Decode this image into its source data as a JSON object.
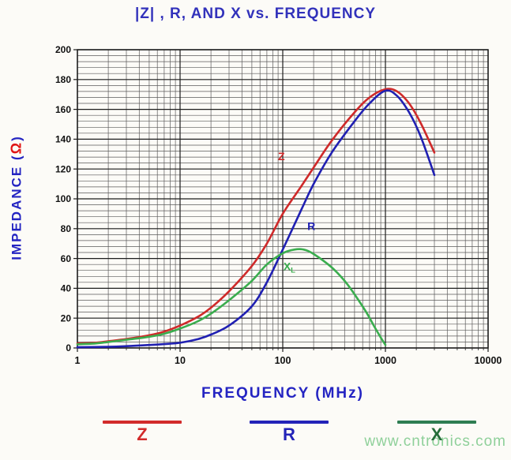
{
  "title": "|Z| , R, AND X vs. FREQUENCY",
  "watermark": "www.cntronics.com",
  "axis": {
    "ylabel_prefix": "IMPEDANCE (",
    "omega": "Ω",
    "ylabel_suffix": ")",
    "xlabel": "FREQUENCY (MHz)"
  },
  "colors": {
    "background": "#fcfbf7",
    "title": "#3232bb",
    "axis_label": "#2424c2",
    "omega": "#e01414",
    "tick_text": "#111111",
    "grid_minor": "#5a5a5a",
    "grid_major": "#1d1d1d",
    "plot_border": "#1d1d1d",
    "watermark": "#8fd09a"
  },
  "legend": {
    "items": [
      {
        "label": "Z",
        "line_color": "#d22b2b",
        "text_color": "#d22b2b"
      },
      {
        "label": "R",
        "line_color": "#2323b8",
        "text_color": "#2323b8"
      },
      {
        "label": "X",
        "line_color": "#2e7d52",
        "text_color": "#256e3a"
      }
    ]
  },
  "chart_data": {
    "type": "line",
    "title": "|Z| , R, AND X vs. FREQUENCY",
    "xlabel": "FREQUENCY (MHz)",
    "ylabel": "IMPEDANCE (Ω)",
    "x_scale": "log",
    "xlim": [
      1,
      10000
    ],
    "ylim": [
      0,
      200
    ],
    "y_major_step": 20,
    "y_minor_step": 4,
    "x_major_ticks": [
      1,
      10,
      100,
      1000,
      10000
    ],
    "grid": true,
    "legend_position": "bottom",
    "series": [
      {
        "name": "Z",
        "color": "#cf2a2a",
        "label": "Z",
        "label_sub": "",
        "label_pos": [
          97,
          126
        ],
        "points": [
          [
            1,
            3
          ],
          [
            1.5,
            3.5
          ],
          [
            2,
            4.5
          ],
          [
            3,
            6
          ],
          [
            5,
            8.5
          ],
          [
            7,
            11
          ],
          [
            10,
            15
          ],
          [
            15,
            21
          ],
          [
            20,
            27
          ],
          [
            30,
            38
          ],
          [
            50,
            55
          ],
          [
            70,
            70
          ],
          [
            100,
            90
          ],
          [
            150,
            108
          ],
          [
            200,
            121
          ],
          [
            300,
            139
          ],
          [
            500,
            158
          ],
          [
            700,
            168
          ],
          [
            1000,
            173.5
          ],
          [
            1300,
            172
          ],
          [
            1700,
            164
          ],
          [
            2200,
            151
          ],
          [
            3000,
            131
          ]
        ]
      },
      {
        "name": "R",
        "color": "#2020b2",
        "label": "R",
        "label_sub": "",
        "label_pos": [
          190,
          79
        ],
        "points": [
          [
            1,
            0.5
          ],
          [
            2,
            0.8
          ],
          [
            3,
            1.2
          ],
          [
            5,
            2
          ],
          [
            7,
            2.6
          ],
          [
            10,
            3.5
          ],
          [
            15,
            6
          ],
          [
            20,
            9
          ],
          [
            30,
            15
          ],
          [
            50,
            28
          ],
          [
            70,
            44
          ],
          [
            100,
            66
          ],
          [
            150,
            92
          ],
          [
            200,
            110
          ],
          [
            300,
            131
          ],
          [
            500,
            152
          ],
          [
            700,
            164
          ],
          [
            1000,
            172.5
          ],
          [
            1300,
            169
          ],
          [
            1700,
            158
          ],
          [
            2200,
            142
          ],
          [
            3000,
            116
          ]
        ]
      },
      {
        "name": "X",
        "color": "#3aad4e",
        "label": "X",
        "label_sub": "L",
        "label_pos": [
          116,
          52
        ],
        "points": [
          [
            1,
            2.5
          ],
          [
            1.5,
            3
          ],
          [
            2,
            4
          ],
          [
            3,
            5.5
          ],
          [
            5,
            7.5
          ],
          [
            7,
            9.5
          ],
          [
            10,
            13
          ],
          [
            15,
            18
          ],
          [
            20,
            23
          ],
          [
            30,
            32
          ],
          [
            50,
            45
          ],
          [
            70,
            56
          ],
          [
            100,
            63.5
          ],
          [
            130,
            66
          ],
          [
            160,
            66
          ],
          [
            200,
            63
          ],
          [
            300,
            54
          ],
          [
            400,
            45
          ],
          [
            500,
            36
          ],
          [
            650,
            24
          ],
          [
            800,
            13
          ],
          [
            900,
            7
          ],
          [
            1000,
            2
          ]
        ]
      }
    ]
  }
}
